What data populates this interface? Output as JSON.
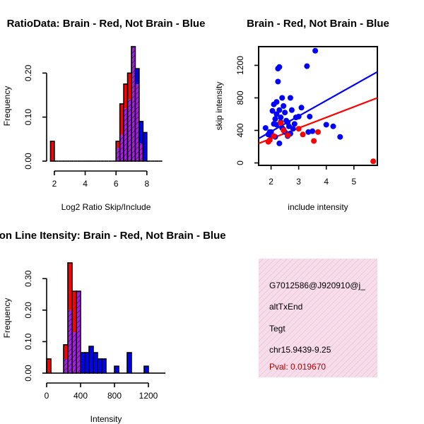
{
  "colors": {
    "brain": "#ff0000",
    "not_brain": "#0000ff",
    "overlap": "#a020f0",
    "overlap_hatch": "#800040",
    "info_bg": "#f7dcea",
    "pval_color": "#b00000"
  },
  "chart_data": [
    {
      "type": "bar",
      "title": "RatioData: Brain - Red, Not Brain - Blue",
      "xlabel": "Log2 Ratio Skip/Include",
      "ylabel": "Frequency",
      "xlim": [
        1.5,
        9.2
      ],
      "ylim": [
        0,
        0.26
      ],
      "xticks": [
        "2",
        "4",
        "6",
        "8"
      ],
      "yticks": [
        "0.00",
        "0.10",
        "0.20"
      ],
      "bin_edges": [
        1.75,
        2.0,
        2.25,
        2.5,
        2.75,
        3.0,
        3.25,
        3.5,
        3.75,
        4.0,
        4.25,
        4.5,
        4.75,
        5.0,
        5.25,
        5.5,
        5.75,
        6.0,
        6.25,
        6.5,
        6.75,
        7.0,
        7.25,
        7.5,
        7.75,
        8.0,
        8.25,
        8.5,
        8.75,
        9.0
      ],
      "series": [
        {
          "name": "Brain",
          "values": [
            0.045,
            0,
            0,
            0,
            0,
            0,
            0,
            0,
            0,
            0,
            0,
            0,
            0,
            0,
            0,
            0,
            0,
            0.045,
            0.13,
            0.175,
            0.2,
            0.26,
            0.175,
            0.04,
            0,
            0,
            0,
            0,
            0
          ]
        },
        {
          "name": "Not Brain",
          "values": [
            0,
            0,
            0,
            0,
            0,
            0,
            0,
            0,
            0,
            0,
            0,
            0,
            0,
            0,
            0,
            0,
            0,
            0.03,
            0.06,
            0.12,
            0.14,
            0.26,
            0.21,
            0.09,
            0.065,
            0,
            0,
            0,
            0
          ]
        }
      ]
    },
    {
      "type": "scatter",
      "title": "Brain - Red, Not Brain - Blue",
      "xlabel": "include intensity",
      "ylabel": "skip intensity",
      "xlim": [
        1.55,
        5.85
      ],
      "ylim": [
        -30,
        1430
      ],
      "xticks": [
        "2",
        "3",
        "4",
        "5"
      ],
      "yticks": [
        "0",
        "400",
        "800",
        "1200"
      ],
      "series": [
        {
          "name": "Not Brain",
          "x": [
            1.8,
            1.9,
            2.0,
            2.05,
            2.1,
            2.15,
            2.2,
            2.2,
            2.25,
            2.3,
            2.3,
            2.35,
            2.4,
            2.4,
            2.45,
            2.5,
            2.5,
            2.55,
            2.6,
            2.65,
            2.7,
            2.75,
            2.8,
            2.85,
            2.9,
            3.0,
            3.1,
            3.3,
            3.4,
            3.6,
            2.25,
            2.3,
            2.1,
            2.2,
            2.0,
            4.0,
            4.25,
            4.5,
            2.6,
            3.5,
            1.95,
            2.15,
            2.35,
            2.45,
            2.7,
            3.35
          ],
          "y": [
            430,
            350,
            380,
            640,
            480,
            540,
            750,
            600,
            1000,
            1180,
            650,
            500,
            800,
            430,
            700,
            620,
            380,
            520,
            330,
            450,
            800,
            650,
            420,
            480,
            560,
            570,
            680,
            1190,
            570,
            1380,
            1160,
            240,
            720,
            470,
            330,
            470,
            450,
            320,
            500,
            390,
            380,
            320,
            560,
            410,
            360,
            380
          ]
        },
        {
          "name": "Brain",
          "x": [
            1.9,
            2.1,
            2.35,
            2.45,
            2.6,
            3.0,
            3.15,
            3.55,
            3.7,
            5.7,
            1.95
          ],
          "y": [
            260,
            330,
            490,
            400,
            340,
            420,
            350,
            270,
            380,
            20,
            280
          ]
        }
      ],
      "fit_lines": [
        {
          "name": "Not Brain",
          "x": [
            1.55,
            5.85
          ],
          "y": [
            300,
            1120
          ]
        },
        {
          "name": "Brain",
          "x": [
            1.55,
            5.85
          ],
          "y": [
            240,
            800
          ]
        }
      ]
    },
    {
      "type": "bar",
      "title": "Exon Line Itensity: Brain - Red, Not Brain - Blue",
      "xlabel": "Intensity",
      "ylabel": "Frequency",
      "xlim": [
        0,
        1400
      ],
      "ylim": [
        0,
        0.35
      ],
      "xticks": [
        "0",
        "400",
        "800",
        "1200"
      ],
      "yticks": [
        "0.00",
        "0.10",
        "0.20",
        "0.30"
      ],
      "bin_edges": [
        0,
        50,
        100,
        150,
        200,
        250,
        300,
        350,
        400,
        450,
        500,
        550,
        600,
        650,
        700,
        750,
        800,
        850,
        900,
        950,
        1000,
        1050,
        1100,
        1150,
        1200,
        1250,
        1300,
        1350,
        1400
      ],
      "series": [
        {
          "name": "Brain",
          "values": [
            0.045,
            0,
            0,
            0,
            0.09,
            0.35,
            0.26,
            0.26,
            0,
            0,
            0,
            0,
            0,
            0,
            0,
            0,
            0,
            0,
            0,
            0,
            0,
            0,
            0,
            0,
            0,
            0,
            0,
            0
          ]
        },
        {
          "name": "Not Brain",
          "values": [
            0,
            0,
            0,
            0,
            0.045,
            0.2,
            0.13,
            0.26,
            0.065,
            0.065,
            0.085,
            0.065,
            0.045,
            0.045,
            0,
            0,
            0.022,
            0,
            0,
            0.065,
            0,
            0,
            0,
            0.022,
            0,
            0,
            0,
            0
          ]
        }
      ]
    }
  ],
  "info_panel": {
    "id": "G7012586@J920910@j_",
    "event": "altTxEnd",
    "tissue": "Tegt",
    "location": "chr15.9439-9.25",
    "pval": "Pval: 0.019670"
  }
}
